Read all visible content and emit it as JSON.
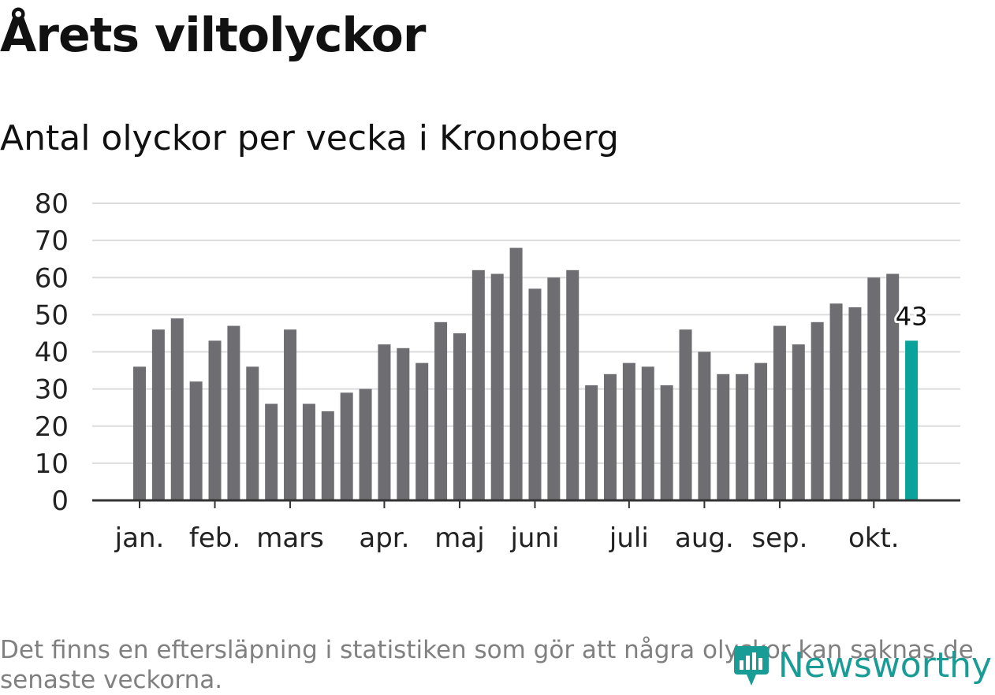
{
  "title": "Årets viltolyckor",
  "subtitle": "Antal olyckor per vecka i Kronoberg",
  "note": "Det finns en eftersläpning i statistiken som gör att några olyckor kan saknas de senaste veckorna.",
  "brand": "Newsworthy",
  "colors": {
    "bar": "#6d6d72",
    "highlight": "#0aa39b",
    "grid": "#dcdcdc",
    "axis": "#333333",
    "brand": "#1a9c96"
  },
  "chart_data": {
    "type": "bar",
    "title": "Antal olyckor per vecka i Kronoberg",
    "xlabel": "",
    "ylabel": "",
    "ylim": [
      0,
      80
    ],
    "yticks": [
      0,
      10,
      20,
      30,
      40,
      50,
      60,
      70,
      80
    ],
    "grid": true,
    "month_labels": [
      {
        "label": "jan.",
        "week": 1
      },
      {
        "label": "feb.",
        "week": 5
      },
      {
        "label": "mars",
        "week": 9
      },
      {
        "label": "apr.",
        "week": 14
      },
      {
        "label": "maj",
        "week": 18
      },
      {
        "label": "juni",
        "week": 22
      },
      {
        "label": "juli",
        "week": 27
      },
      {
        "label": "aug.",
        "week": 31
      },
      {
        "label": "sep.",
        "week": 35
      },
      {
        "label": "okt.",
        "week": 40
      }
    ],
    "weeks": [
      1,
      2,
      3,
      4,
      5,
      6,
      7,
      8,
      9,
      10,
      11,
      12,
      13,
      14,
      15,
      16,
      17,
      18,
      19,
      20,
      21,
      22,
      23,
      24,
      25,
      26,
      27,
      28,
      29,
      30,
      31,
      32,
      33,
      34,
      35,
      36,
      37,
      38,
      39,
      40,
      41,
      42
    ],
    "values": [
      36,
      46,
      49,
      32,
      43,
      47,
      36,
      26,
      46,
      26,
      24,
      29,
      30,
      42,
      41,
      37,
      48,
      45,
      62,
      61,
      68,
      57,
      60,
      62,
      31,
      34,
      37,
      36,
      31,
      46,
      40,
      34,
      34,
      37,
      47,
      42,
      48,
      53,
      52,
      60,
      61,
      43
    ],
    "highlight_index": 41,
    "highlight_label": "43"
  }
}
